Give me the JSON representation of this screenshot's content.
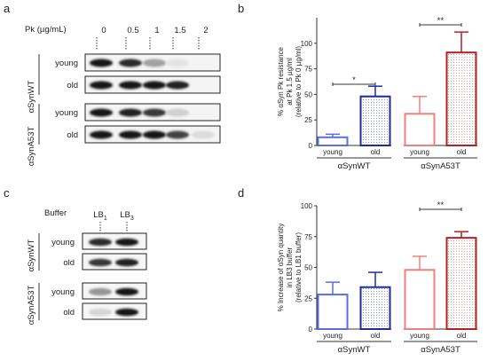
{
  "panel_a": {
    "letter": "a",
    "pk_label": "Pk (µg/mL)",
    "concentrations": [
      "0",
      "0.5",
      "1",
      "1.5",
      "2"
    ],
    "groups": [
      {
        "name": "αSynWT",
        "rows": [
          "young",
          "old"
        ],
        "intensity": [
          [
            1.0,
            0.9,
            0.4,
            0.12,
            0.0
          ],
          [
            1.0,
            1.0,
            1.0,
            0.95,
            0.0
          ]
        ]
      },
      {
        "name": "αSynA53T",
        "rows": [
          "young",
          "old"
        ],
        "intensity": [
          [
            1.0,
            0.95,
            0.85,
            0.2,
            0.0
          ],
          [
            1.0,
            1.0,
            1.0,
            0.8,
            0.15
          ]
        ]
      }
    ]
  },
  "panel_c": {
    "letter": "c",
    "buffer_label": "Buffer",
    "lanes": [
      "LB1",
      "LB3"
    ],
    "groups": [
      {
        "name": "αSynWT",
        "rows": [
          "young",
          "old"
        ]
      },
      {
        "name": "αSynA53T",
        "rows": [
          "young",
          "old"
        ]
      }
    ]
  },
  "chart_data": [
    {
      "panel": "b",
      "type": "bar",
      "ylabel": [
        "% αSyn Pk resistance",
        "at Pk 1.5 µg/ml",
        "(relative to Pk 0 µg/ml)"
      ],
      "ylim": [
        0,
        125
      ],
      "yticks": [
        0,
        25,
        50,
        75,
        100
      ],
      "groups": [
        "αSynWT",
        "αSynA53T"
      ],
      "categories": [
        "young",
        "old",
        "young",
        "old"
      ],
      "values": [
        8,
        48,
        31,
        91
      ],
      "errors": [
        3,
        10,
        17,
        20
      ],
      "colors": [
        "#5b6fe0",
        "#1f2e9a",
        "#f08080",
        "#b22222"
      ],
      "patterned": [
        false,
        true,
        false,
        true
      ],
      "significance": [
        {
          "between": [
            0,
            1
          ],
          "label": "*"
        },
        {
          "between": [
            2,
            3
          ],
          "label": "**"
        }
      ]
    },
    {
      "panel": "d",
      "type": "bar",
      "ylabel": [
        "% Increase of αSyn quantity",
        "in LB3 buffer",
        "(relative to LB1 buffer)"
      ],
      "ylim": [
        0,
        100
      ],
      "yticks": [
        0,
        25,
        50,
        75,
        100
      ],
      "groups": [
        "αSynWT",
        "αSynA53T"
      ],
      "categories": [
        "young",
        "old",
        "young",
        "old"
      ],
      "values": [
        28,
        34,
        48,
        74
      ],
      "errors": [
        10,
        12,
        11,
        5
      ],
      "colors": [
        "#5b6fe0",
        "#1f2e9a",
        "#f08080",
        "#b22222"
      ],
      "patterned": [
        false,
        true,
        false,
        true
      ],
      "significance": [
        {
          "between": [
            2,
            3
          ],
          "label": "**"
        }
      ]
    }
  ]
}
